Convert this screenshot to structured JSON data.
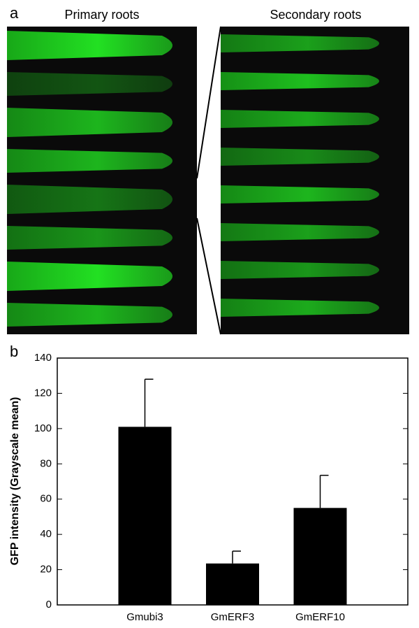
{
  "panel_a": {
    "label": "a",
    "left_title": "Primary roots",
    "right_title": "Secondary roots"
  },
  "panel_b": {
    "label": "b"
  },
  "chart_data": {
    "type": "bar",
    "ylabel": "GFP intensity (Grayscale mean)",
    "categories": [
      "Gmubi3",
      "GmERF3",
      "GmERF10"
    ],
    "values": [
      101,
      23.5,
      55
    ],
    "errors": [
      27,
      7,
      18.5
    ],
    "color": "#000000",
    "ylim": [
      0,
      140
    ],
    "yticks": [
      0,
      20,
      40,
      60,
      80,
      100,
      120,
      140
    ]
  }
}
